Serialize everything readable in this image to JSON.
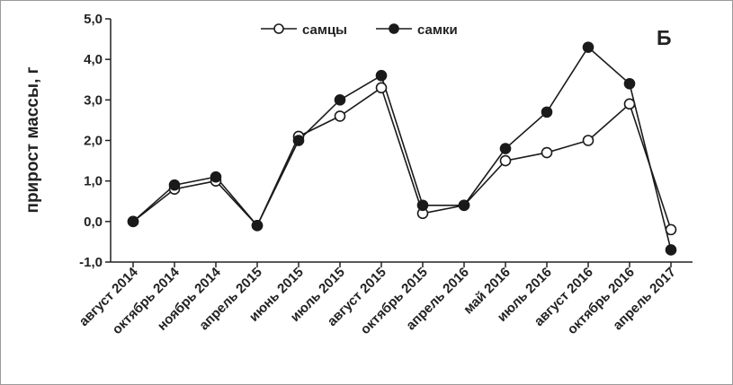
{
  "chart_data": {
    "type": "line",
    "panel_label": "Б",
    "ylabel": "прирост массы, г",
    "xlabel": "",
    "ylim": [
      -1.0,
      5.0
    ],
    "yticks": [
      "-1,0",
      "0,0",
      "1,0",
      "2,0",
      "3,0",
      "4,0",
      "5,0"
    ],
    "ytick_values": [
      -1,
      0,
      1,
      2,
      3,
      4,
      5
    ],
    "categories": [
      "август 2014",
      "октябрь 2014",
      "ноябрь 2014",
      "апрель 2015",
      "июнь 2015",
      "июль 2015",
      "август 2015",
      "октябрь 2015",
      "апрель 2016",
      "май 2016",
      "июль 2016",
      "август 2016",
      "октябрь 2016",
      "апрель 2017"
    ],
    "legend_position": "top-center",
    "series": [
      {
        "name": "самцы",
        "marker": "open-circle",
        "values": [
          0.0,
          0.8,
          1.0,
          -0.1,
          2.1,
          2.6,
          3.3,
          0.2,
          0.4,
          1.5,
          1.7,
          2.0,
          2.9,
          -0.2
        ]
      },
      {
        "name": "самки",
        "marker": "filled-circle",
        "values": [
          0.0,
          0.9,
          1.1,
          -0.1,
          2.0,
          3.0,
          3.6,
          0.4,
          0.4,
          1.8,
          2.7,
          4.3,
          3.4,
          -0.7
        ]
      }
    ],
    "colors": {
      "line": "#1a1a1a",
      "open_fill": "#ffffff",
      "filled_fill": "#1a1a1a"
    }
  }
}
